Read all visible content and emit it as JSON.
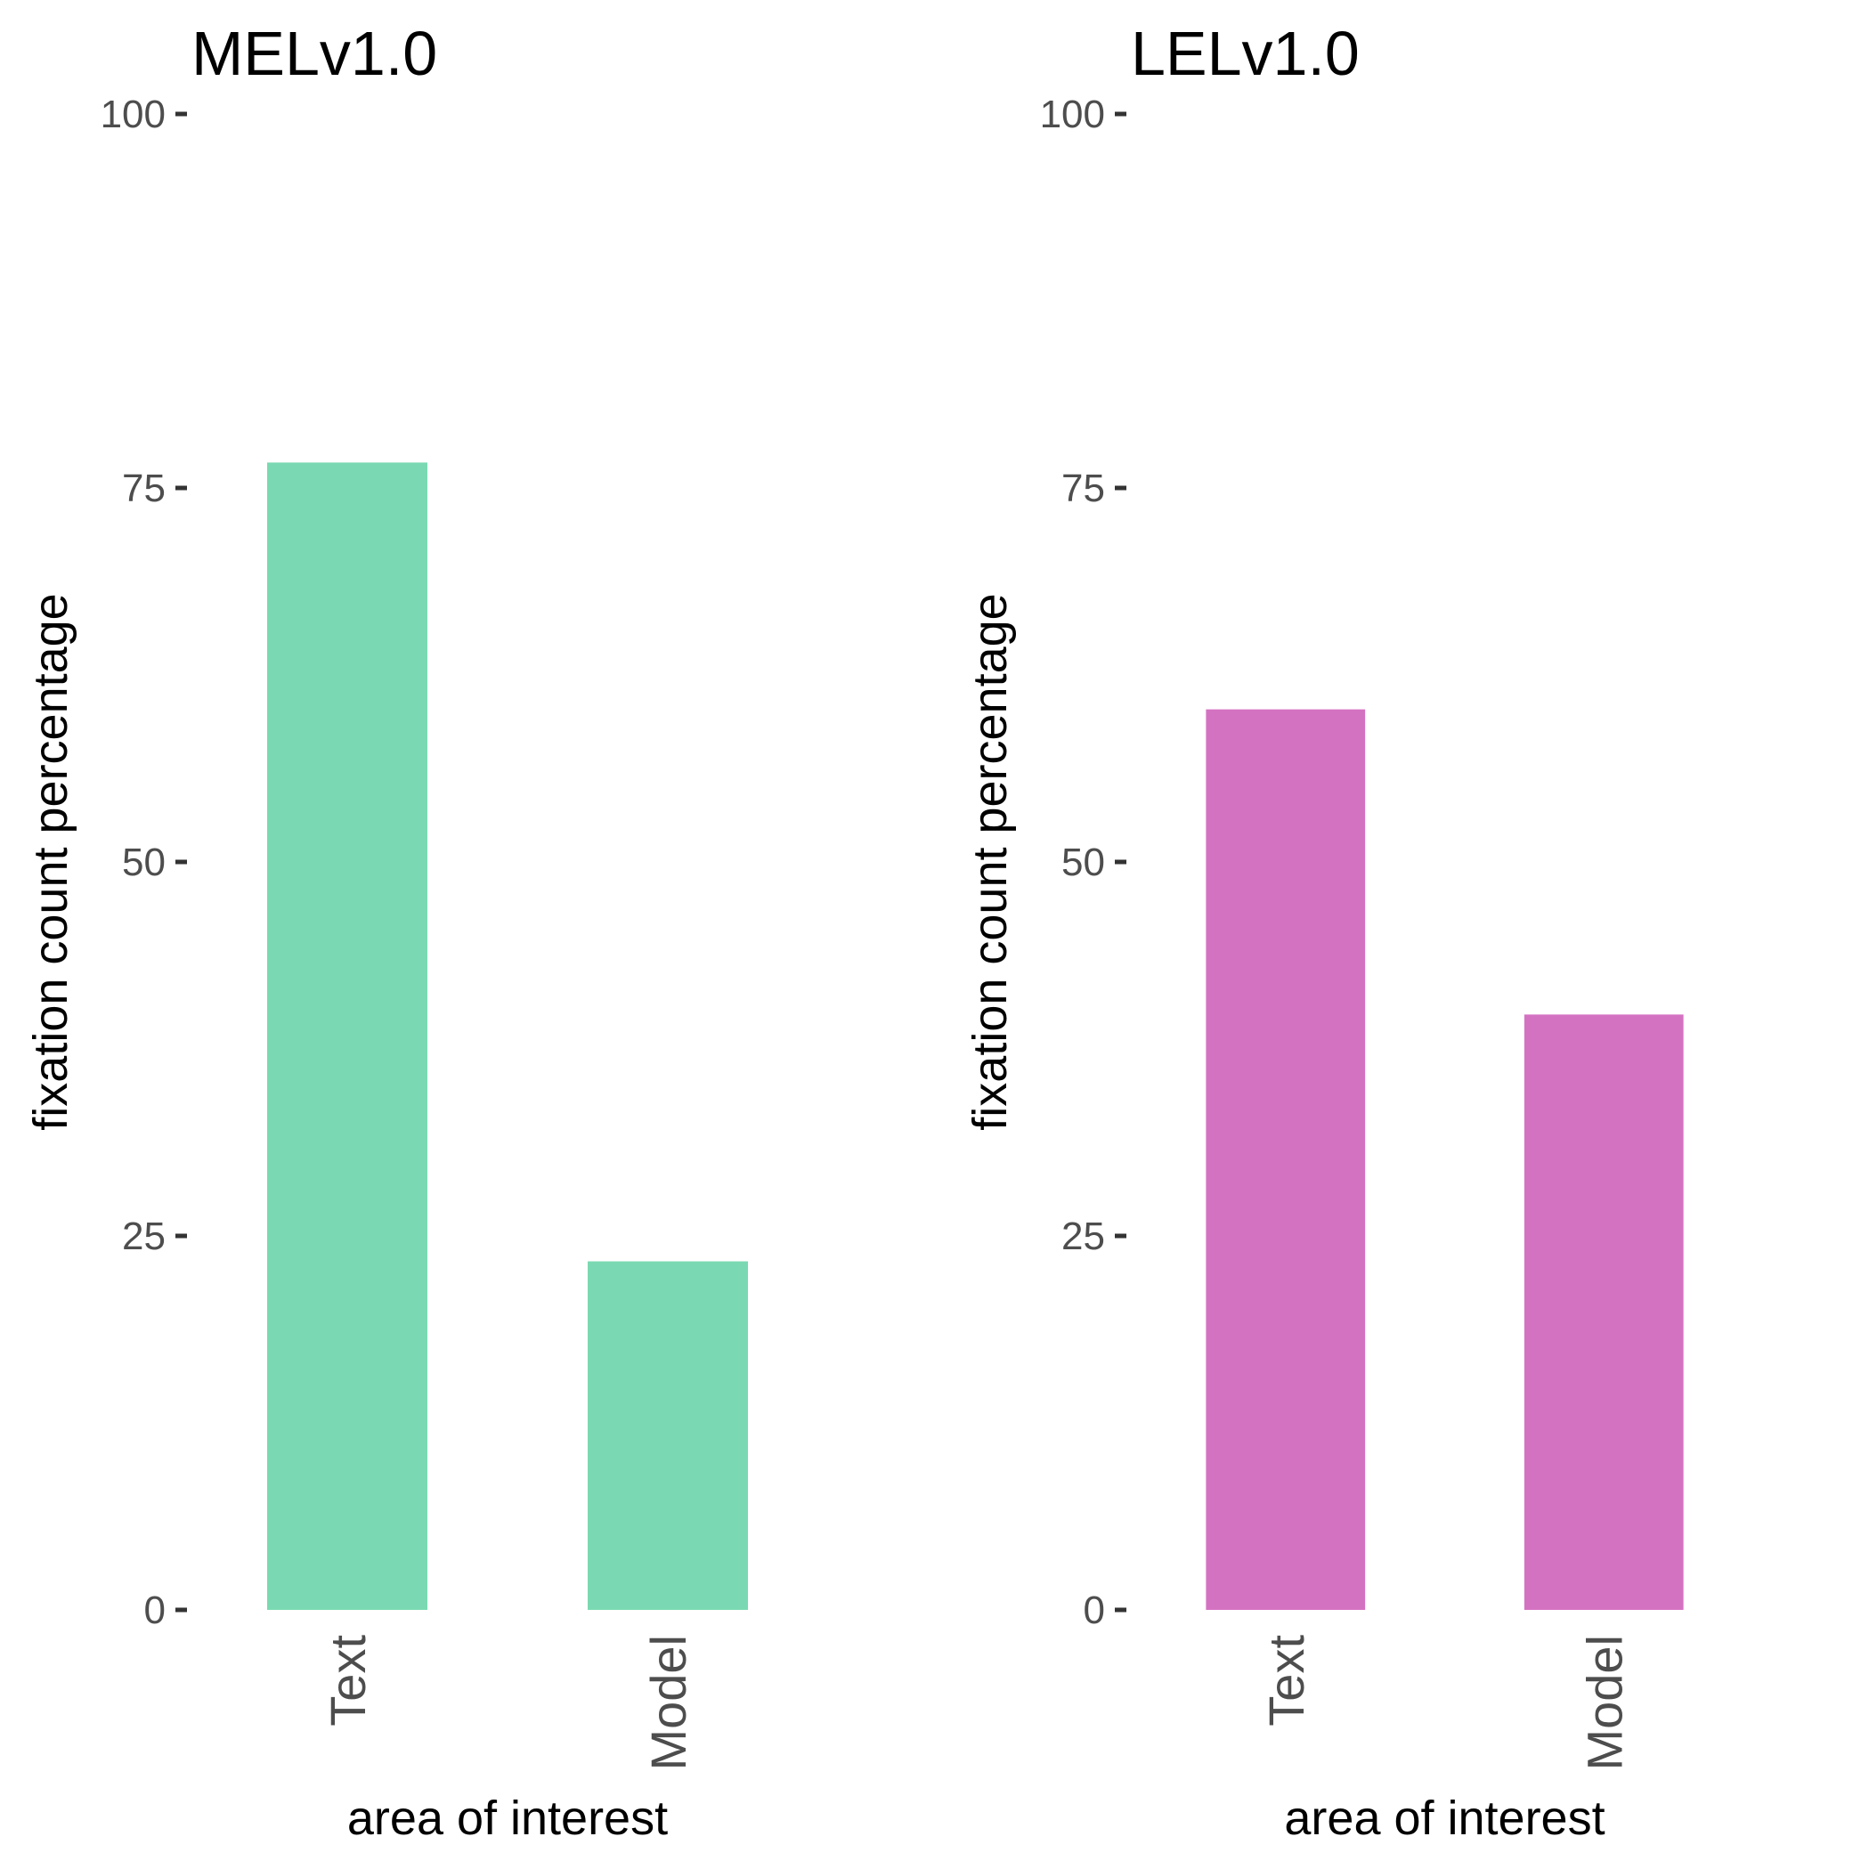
{
  "chart_data": [
    {
      "type": "bar",
      "title": "MELv1.0",
      "xlabel": "area of interest",
      "ylabel": "fixation count percentage",
      "categories": [
        "Text",
        "Model"
      ],
      "values": [
        76.7,
        23.3
      ],
      "ylim": [
        0,
        100
      ],
      "yticks": [
        0,
        25,
        50,
        75,
        100
      ],
      "grid": false,
      "color": "#7ad9b2"
    },
    {
      "type": "bar",
      "title": "LELv1.0",
      "xlabel": "area of interest",
      "ylabel": "fixation count percentage",
      "categories": [
        "Text",
        "Model"
      ],
      "values": [
        60.2,
        39.8
      ],
      "ylim": [
        0,
        100
      ],
      "yticks": [
        0,
        25,
        50,
        75,
        100
      ],
      "grid": false,
      "color": "#d472c2"
    }
  ]
}
